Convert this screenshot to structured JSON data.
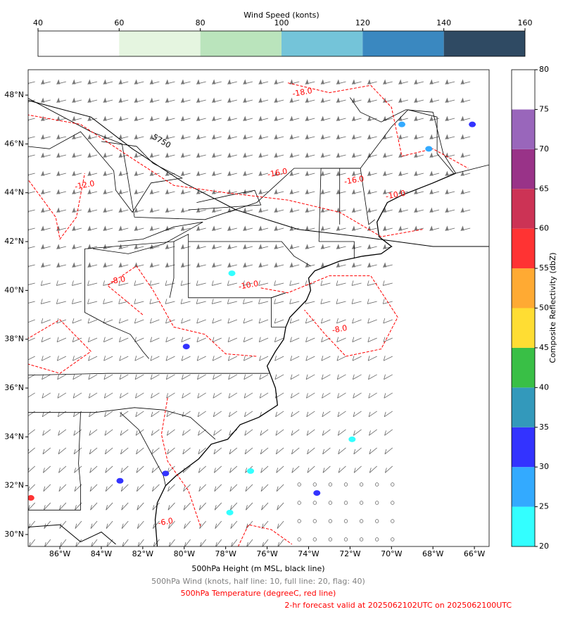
{
  "wind_colorbar": {
    "title": "Wind Speed (konts)",
    "lim": [
      40,
      160
    ],
    "ticks": [
      40,
      60,
      80,
      100,
      120,
      140,
      160
    ],
    "colors": [
      "#ffffff",
      "#e5f5e0",
      "#bae4bc",
      "#74c4d9",
      "#3a88c0",
      "#2f4a63"
    ]
  },
  "map": {
    "xlim": [
      -87.53,
      -65.29
    ],
    "ylim": [
      29.51,
      49.04
    ],
    "xticks": [
      {
        "value": -86,
        "label": "86°W"
      },
      {
        "value": -84,
        "label": "84°W"
      },
      {
        "value": -82,
        "label": "82°W"
      },
      {
        "value": -80,
        "label": "80°W"
      },
      {
        "value": -78,
        "label": "78°W"
      },
      {
        "value": -76,
        "label": "76°W"
      },
      {
        "value": -74,
        "label": "74°W"
      },
      {
        "value": -72,
        "label": "72°W"
      },
      {
        "value": -70,
        "label": "70°W"
      },
      {
        "value": -68,
        "label": "68°W"
      },
      {
        "value": -66,
        "label": "66°W"
      }
    ],
    "yticks": [
      {
        "value": 30,
        "label": "30°N"
      },
      {
        "value": 32,
        "label": "32°N"
      },
      {
        "value": 34,
        "label": "34°N"
      },
      {
        "value": 36,
        "label": "36°N"
      },
      {
        "value": 38,
        "label": "38°N"
      },
      {
        "value": 40,
        "label": "40°N"
      },
      {
        "value": 42,
        "label": "42°N"
      },
      {
        "value": 44,
        "label": "44°N"
      },
      {
        "value": 46,
        "label": "46°N"
      },
      {
        "value": 48,
        "label": "48°N"
      }
    ],
    "contour_labels": [
      "-18.0",
      "-16.0",
      "-16.0",
      "-12.0",
      "-10.0",
      "-10.0",
      "-8.0",
      "-8.0",
      "-6.0",
      "5750"
    ]
  },
  "reflectivity_colorbar": {
    "label": "Composite Reflectivity (dbZ)",
    "lim": [
      20,
      80
    ],
    "ticks": [
      20,
      25,
      30,
      35,
      40,
      45,
      50,
      55,
      60,
      65,
      70,
      75,
      80
    ],
    "colors": [
      "#33ffff",
      "#33aaff",
      "#3333ff",
      "#3399bb",
      "#39bf46",
      "#ffdd33",
      "#ffaa33",
      "#ff3333",
      "#cc3355",
      "#993388",
      "#9966bb",
      "#ffffff"
    ]
  },
  "captions": [
    {
      "text": "500hPa Height (m MSL, black line)",
      "color": "#000000"
    },
    {
      "text": "500hPa Wind (knots, half line: 10, full line: 20, flag: 40)",
      "color": "#808080"
    },
    {
      "text": "500hPa Temperature (degreeC, red line)",
      "color": "#ff0000"
    },
    {
      "text": "2-hr forecast valid at 2025062102UTC on 2025062100UTC",
      "color": "#ff0000"
    }
  ]
}
